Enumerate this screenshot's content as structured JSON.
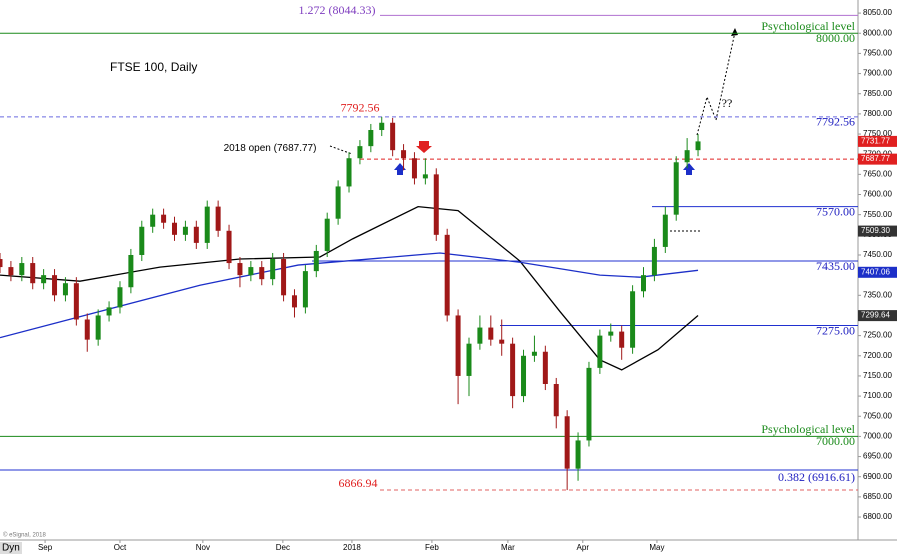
{
  "chart_data": {
    "type": "candlestick",
    "title": "FTSE 100, Daily",
    "corner_label": "Dyn",
    "credit": "© eSignal, 2018",
    "x": [
      0,
      3,
      6,
      9,
      12,
      15,
      18,
      21,
      24,
      27,
      30,
      33,
      36,
      39,
      42,
      45,
      48,
      51,
      54,
      57,
      60,
      63,
      66,
      69,
      72,
      75,
      78,
      81,
      84,
      87,
      90,
      93,
      96,
      99,
      102,
      105,
      108,
      111,
      114,
      117,
      120,
      123,
      126,
      129,
      132,
      135,
      138,
      141,
      144,
      147,
      150,
      153,
      156,
      159,
      162,
      165,
      168,
      171,
      174,
      177,
      180,
      183,
      186,
      189,
      192
    ],
    "open": [
      7440,
      7420,
      7400,
      7430,
      7380,
      7400,
      7350,
      7380,
      7290,
      7240,
      7300,
      7320,
      7370,
      7450,
      7520,
      7550,
      7530,
      7500,
      7520,
      7480,
      7570,
      7510,
      7430,
      7400,
      7420,
      7390,
      7440,
      7350,
      7320,
      7410,
      7460,
      7540,
      7620,
      7690,
      7720,
      7760,
      7778,
      7710,
      7690,
      7640,
      7650,
      7500,
      7300,
      7150,
      7230,
      7270,
      7240,
      7230,
      7100,
      7200,
      7210,
      7130,
      7050,
      6920,
      6990,
      7170,
      7250,
      7260,
      7220,
      7360,
      7400,
      7470,
      7550,
      7680,
      7710
    ],
    "high": [
      7455,
      7435,
      7445,
      7445,
      7415,
      7415,
      7395,
      7395,
      7305,
      7315,
      7335,
      7385,
      7465,
      7535,
      7565,
      7565,
      7545,
      7535,
      7535,
      7585,
      7585,
      7525,
      7445,
      7435,
      7435,
      7455,
      7455,
      7365,
      7425,
      7475,
      7555,
      7635,
      7705,
      7735,
      7775,
      7792.56,
      7790,
      7725,
      7705,
      7690,
      7665,
      7515,
      7315,
      7245,
      7300,
      7300,
      7290,
      7245,
      7215,
      7250,
      7225,
      7145,
      7065,
      7010,
      7185,
      7265,
      7280,
      7275,
      7375,
      7420,
      7490,
      7570,
      7695,
      7740,
      7750
    ],
    "low": [
      7405,
      7385,
      7385,
      7365,
      7365,
      7335,
      7335,
      7275,
      7210,
      7225,
      7285,
      7305,
      7355,
      7435,
      7505,
      7515,
      7485,
      7485,
      7465,
      7465,
      7495,
      7415,
      7370,
      7385,
      7375,
      7375,
      7335,
      7295,
      7305,
      7395,
      7445,
      7525,
      7605,
      7675,
      7705,
      7745,
      7695,
      7660,
      7625,
      7625,
      7485,
      7285,
      7080,
      7100,
      7215,
      7225,
      7200,
      7070,
      7085,
      7185,
      7115,
      7020,
      6866.94,
      6890,
      6975,
      7155,
      7235,
      7190,
      7205,
      7345,
      7385,
      7455,
      7535,
      7665,
      7695
    ],
    "close": [
      7420,
      7400,
      7430,
      7380,
      7400,
      7350,
      7380,
      7290,
      7240,
      7300,
      7320,
      7370,
      7450,
      7520,
      7550,
      7530,
      7500,
      7520,
      7480,
      7570,
      7510,
      7430,
      7400,
      7420,
      7390,
      7440,
      7350,
      7320,
      7410,
      7460,
      7540,
      7620,
      7690,
      7720,
      7760,
      7778,
      7710,
      7690,
      7640,
      7650,
      7500,
      7300,
      7150,
      7230,
      7270,
      7240,
      7230,
      7100,
      7200,
      7210,
      7130,
      7050,
      6920,
      6990,
      7170,
      7250,
      7260,
      7220,
      7360,
      7400,
      7470,
      7550,
      7680,
      7710,
      7731.77
    ],
    "up_color": "#1a8a1a",
    "down_color": "#a01818",
    "lines": [
      {
        "color": "#000000",
        "x": [
          0,
          22,
          44,
          66,
          88,
          97,
          115,
          126,
          143,
          154,
          165,
          171,
          181,
          192
        ],
        "values": [
          7400,
          7385,
          7420,
          7440,
          7445,
          7490,
          7570,
          7560,
          7435,
          7310,
          7190,
          7165,
          7215,
          7300
        ]
      },
      {
        "color": "#1c2fc8",
        "x": [
          0,
          55,
          82,
          121,
          143,
          165,
          176,
          192
        ],
        "values": [
          7245,
          7375,
          7425,
          7455,
          7432,
          7400,
          7395,
          7412
        ]
      }
    ],
    "levels": [
      {
        "value": 8044.33,
        "color": "#b070d0",
        "label": "1.272 (8044.33)",
        "label_color": "#8040c0"
      },
      {
        "value": 8000,
        "color": "#1a8a1a",
        "label": "8000.00",
        "note": "Psychological level",
        "label_color": "#1a8a1a"
      },
      {
        "value": 7792.56,
        "color": "#6a6ae0",
        "dash": true,
        "label": "7792.56",
        "label_color": "#2020c0"
      },
      {
        "value": 7687.77,
        "color": "#e02020",
        "dash": true,
        "label": "2018 open (7687.77)",
        "label_color": "#000000"
      },
      {
        "value": 7570,
        "color": "#2030d0",
        "label": "7570.00",
        "label_color": "#2020c0"
      },
      {
        "value": 7435,
        "color": "#2030d0",
        "label": "7435.00",
        "label_color": "#2020c0"
      },
      {
        "value": 7275,
        "color": "#2030d0",
        "label": "7275.00",
        "label_color": "#2020c0"
      },
      {
        "value": 7000,
        "color": "#1a8a1a",
        "label": "7000.00",
        "note": "Psychological level",
        "label_color": "#1a8a1a"
      },
      {
        "value": 6916.61,
        "color": "#2030d0",
        "label": "0.382 (6916.61)",
        "label_color": "#2020c0"
      },
      {
        "value": 6866.94,
        "color": "#e06060",
        "dash": true,
        "label": "6866.94",
        "label_color": "#e02020"
      }
    ],
    "annotations": [
      {
        "text": "7792.56",
        "color": "#e02020"
      },
      {
        "text": "??",
        "color": "#000000"
      }
    ],
    "price_tags": [
      {
        "value": 7731.77,
        "label": "7731.77",
        "color": "#e02020"
      },
      {
        "value": 7687.77,
        "label": "7687.77",
        "color": "#e02020"
      },
      {
        "value": 7509.3,
        "label": "7509.30",
        "color": "#333333"
      },
      {
        "value": 7407.06,
        "label": "7407.06",
        "color": "#1c2fc8"
      },
      {
        "value": 7299.64,
        "label": "7299.64",
        "color": "#333333"
      }
    ],
    "xlim": [
      0,
      236
    ],
    "xticks": [
      {
        "value": 12.4,
        "label": "Sep"
      },
      {
        "value": 33,
        "label": "Oct"
      },
      {
        "value": 55.8,
        "label": "Nov"
      },
      {
        "value": 77.8,
        "label": "Dec"
      },
      {
        "value": 96.8,
        "label": "2018"
      },
      {
        "value": 118.8,
        "label": "Feb"
      },
      {
        "value": 139.7,
        "label": "Mar"
      },
      {
        "value": 160.3,
        "label": "Apr"
      },
      {
        "value": 180.7,
        "label": "May"
      }
    ],
    "ylim": [
      6750,
      8080
    ],
    "yticks": [
      {
        "value": 6800,
        "label": "6800.00"
      },
      {
        "value": 6850,
        "label": "6850.00"
      },
      {
        "value": 6900,
        "label": "6900.00"
      },
      {
        "value": 6950,
        "label": "6950.00"
      },
      {
        "value": 7000,
        "label": "7000.00"
      },
      {
        "value": 7050,
        "label": "7050.00"
      },
      {
        "value": 7100,
        "label": "7100.00"
      },
      {
        "value": 7150,
        "label": "7150.00"
      },
      {
        "value": 7200,
        "label": "7200.00"
      },
      {
        "value": 7250,
        "label": "7250.00"
      },
      {
        "value": 7300,
        "label": "7300.00"
      },
      {
        "value": 7350,
        "label": "7350.00"
      },
      {
        "value": 7400,
        "label": "7400.00"
      },
      {
        "value": 7450,
        "label": "7450.00"
      },
      {
        "value": 7500,
        "label": "7500.00"
      },
      {
        "value": 7550,
        "label": "7550.00"
      },
      {
        "value": 7600,
        "label": "7600.00"
      },
      {
        "value": 7650,
        "label": "7650.00"
      },
      {
        "value": 7700,
        "label": "7700.00"
      },
      {
        "value": 7750,
        "label": "7750.00"
      },
      {
        "value": 7800,
        "label": "7800.00"
      },
      {
        "value": 7850,
        "label": "7850.00"
      },
      {
        "value": 7900,
        "label": "7900.00"
      },
      {
        "value": 7950,
        "label": "7950.00"
      },
      {
        "value": 8000,
        "label": "8000.00"
      },
      {
        "value": 8050,
        "label": "8050.00"
      }
    ]
  }
}
